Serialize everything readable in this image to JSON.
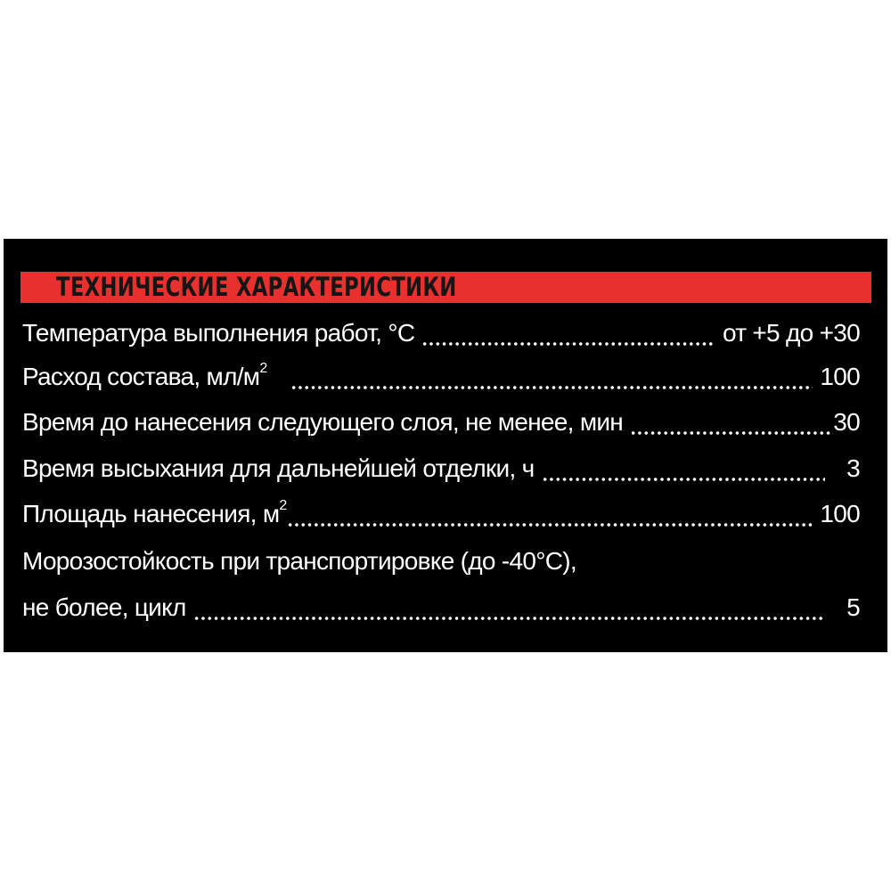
{
  "colors": {
    "panel": "#000000",
    "header_bar": "#e8302e",
    "header_text": "#151515",
    "text": "#ffffff"
  },
  "title": "ТЕХНИЧЕСКИЕ ХАРАКТЕРИСТИКИ",
  "rows": [
    {
      "label": "Температура выполнения работ, °С",
      "sup": "",
      "value": "от +5 до +30"
    },
    {
      "label": "Расход состава, мл/м",
      "sup": "2",
      "value": "100"
    },
    {
      "label": "Время до нанесения следующего слоя, не менее, мин",
      "sup": "",
      "value": "30"
    },
    {
      "label": "Время высыхания для дальнейшей отделки, ч",
      "sup": "",
      "value": "3"
    },
    {
      "label": "Площадь нанесения, м",
      "sup": "2",
      "value": "100"
    },
    {
      "label": "Морозостойкость при транспортировке (до -40°С),",
      "sup": "",
      "value": ""
    },
    {
      "label": "не более, цикл",
      "sup": "",
      "value": "5"
    }
  ]
}
